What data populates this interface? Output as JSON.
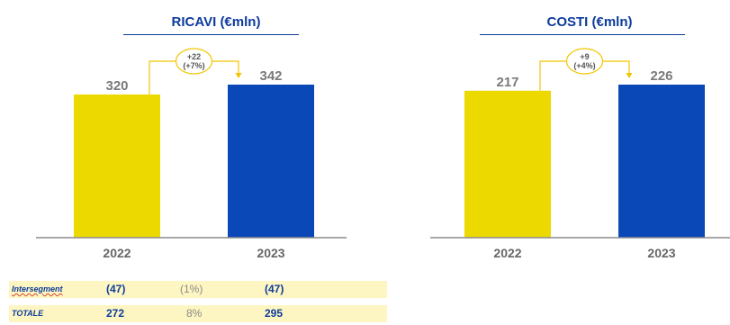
{
  "colors": {
    "bar_2022": "#ecd900",
    "bar_2023": "#0a48b8",
    "title": "#0d3b9c",
    "value_text": "#7a7a7a",
    "delta_line": "#f2c500",
    "axis": "#8c8c8c"
  },
  "chart_data": [
    {
      "type": "bar",
      "title": "RICAVI (€mln)",
      "categories": [
        "2022",
        "2023"
      ],
      "values": [
        320,
        342
      ],
      "data_labels": [
        "320",
        "342"
      ],
      "delta_label": [
        "+22",
        "(+7%)"
      ],
      "ylim": [
        0,
        342
      ]
    },
    {
      "type": "bar",
      "title": "COSTI (€mln)",
      "categories": [
        "2022",
        "2023"
      ],
      "values": [
        217,
        226
      ],
      "data_labels": [
        "217",
        "226"
      ],
      "delta_label": [
        "+9",
        "(+4%)"
      ],
      "ylim": [
        0,
        226
      ]
    }
  ],
  "summary_table": {
    "rows": [
      {
        "label": "Intersegment",
        "v2022": "(47)",
        "pct": "(1%)",
        "v2023": "(47)"
      },
      {
        "label": "TOTALE",
        "v2022": "272",
        "pct": "8%",
        "v2023": "295"
      }
    ]
  }
}
